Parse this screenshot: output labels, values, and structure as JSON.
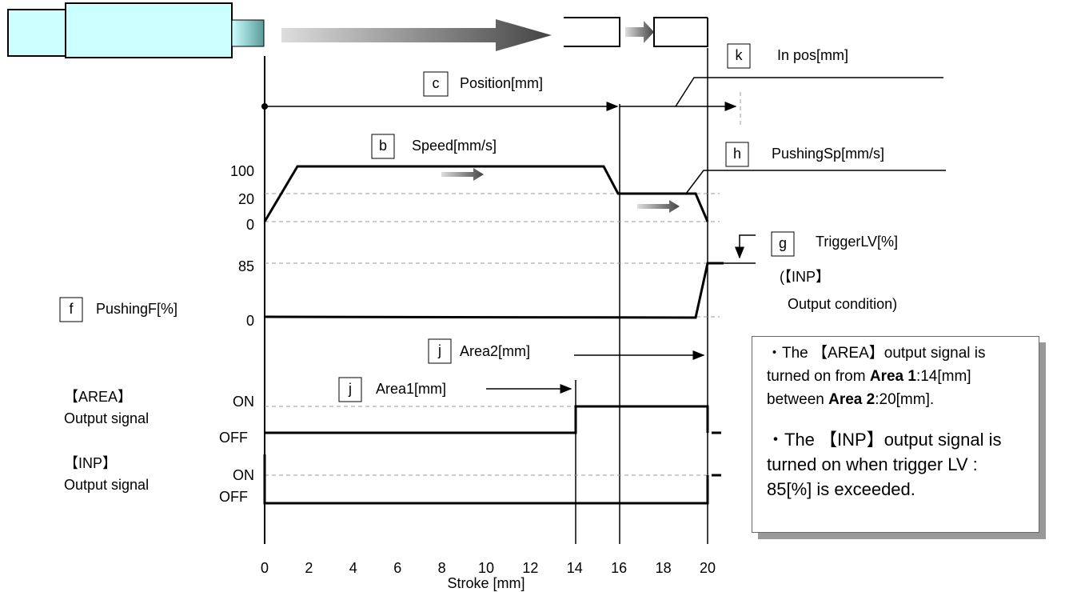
{
  "position": {
    "key": "c",
    "label": "Position[mm]"
  },
  "in_pos": {
    "key": "k",
    "label": "In pos[mm]"
  },
  "speed": {
    "key": "b",
    "label": "Speed[mm/s]",
    "ticks": [
      100,
      20,
      0
    ]
  },
  "pushing_speed": {
    "key": "h",
    "label": "PushingSp[mm/s]"
  },
  "pushing_force": {
    "key": "f",
    "label": "PushingF[%]",
    "ticks": [
      85,
      0
    ]
  },
  "trigger_lv": {
    "key": "g",
    "label": "TriggerLV[%]",
    "note": [
      "(【INP】",
      "Output condition)"
    ]
  },
  "area2": {
    "key": "j",
    "label": "Area2[mm]"
  },
  "area1": {
    "key": "j",
    "label": "Area1[mm]"
  },
  "area_signal": {
    "name": [
      "【AREA】",
      "Output signal"
    ],
    "on": "ON",
    "off": "OFF"
  },
  "inp_signal": {
    "name": [
      "【INP】",
      "Output signal"
    ],
    "on": "ON",
    "off": "OFF"
  },
  "x_axis": {
    "ticks": [
      0,
      2,
      4,
      6,
      8,
      10,
      12,
      14,
      16,
      18,
      20
    ],
    "label": "Stroke [mm]"
  },
  "note": {
    "items": [
      [
        "・The 【AREA】output signal is turned on from ",
        "Area 1",
        ":14[mm] between ",
        "Area 2",
        ":20[mm]."
      ],
      [
        "・The 【INP】output signal is turned on when trigger LV : 85[%] is exceeded."
      ]
    ]
  }
}
